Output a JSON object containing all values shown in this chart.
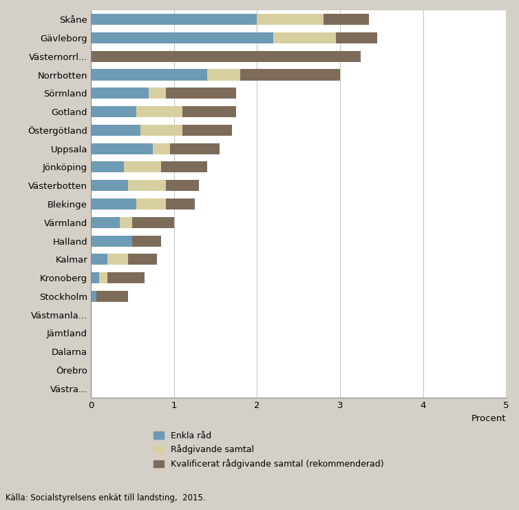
{
  "categories": [
    "Skåne",
    "Gävleborg",
    "Västernorrl...",
    "Norrbotten",
    "Sörmland",
    "Gotland",
    "Östergötland",
    "Uppsala",
    "Jönköping",
    "Västerbotten",
    "Blekinge",
    "Värmland",
    "Halland",
    "Kalmar",
    "Kronoberg",
    "Stockholm",
    "Västmanla...",
    "Jämtland",
    "Dalarna",
    "Örebro",
    "Västra..."
  ],
  "enkla_rad": [
    2.0,
    2.2,
    0.0,
    1.4,
    0.7,
    0.55,
    0.6,
    0.75,
    0.4,
    0.45,
    0.55,
    0.35,
    0.5,
    0.2,
    0.1,
    0.07,
    0.0,
    0.0,
    0.0,
    0.0,
    0.0
  ],
  "radgivande_samtal": [
    0.8,
    0.75,
    0.0,
    0.4,
    0.2,
    0.55,
    0.5,
    0.2,
    0.45,
    0.45,
    0.35,
    0.15,
    0.0,
    0.25,
    0.1,
    0.0,
    0.0,
    0.0,
    0.0,
    0.0,
    0.0
  ],
  "kvalificerat": [
    0.55,
    0.5,
    3.25,
    1.2,
    0.85,
    0.65,
    0.6,
    0.6,
    0.55,
    0.4,
    0.35,
    0.5,
    0.35,
    0.35,
    0.45,
    0.38,
    0.0,
    0.0,
    0.0,
    0.0,
    0.0
  ],
  "color_enkla": "#6d9ab5",
  "color_radgivande": "#d8cfa0",
  "color_kvalificerat": "#7d6b5a",
  "bg_color": "#d4cfc7",
  "plot_bg": "#ffffff",
  "xlabel": "Procent",
  "xlim": [
    0,
    5
  ],
  "xticks": [
    0,
    1,
    2,
    3,
    4,
    5
  ],
  "legend_labels": [
    "Enkla råd",
    "Rådgivande samtal",
    "Kvalificerat rådgivande samtal (rekommenderad)"
  ],
  "source_text": "Källa: Socialstyrelsens enkät till landsting,  2015."
}
